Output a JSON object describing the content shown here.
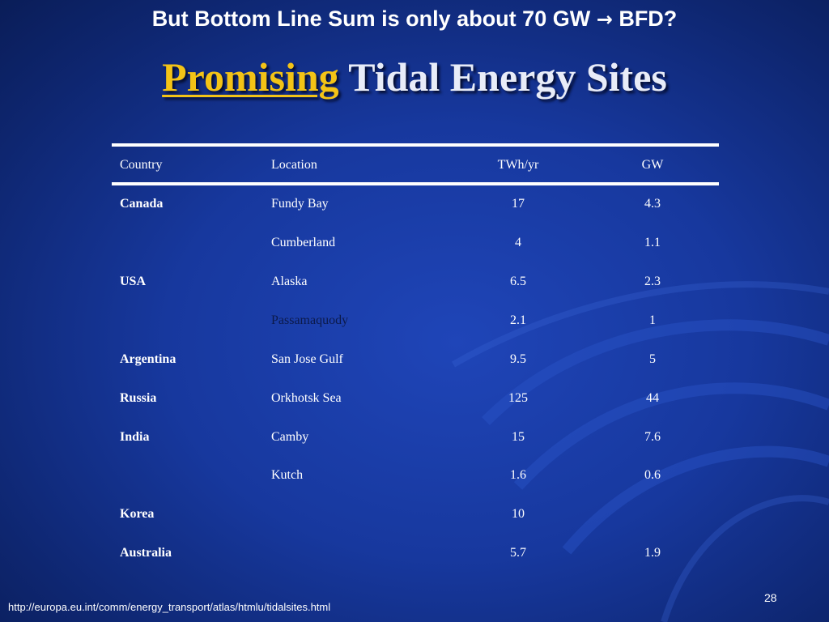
{
  "slide": {
    "top_note_pre": "But Bottom Line Sum is only  about 70 GW ",
    "top_note_arrow": "→",
    "top_note_post": " BFD?",
    "title_highlight": "Promising",
    "title_rest": " Tidal Energy Sites",
    "footer_url": "http://europa.eu.int/comm/energy_transport/atlas/htmlu/tidalsites.html",
    "page_number": "28"
  },
  "table": {
    "headers": {
      "country": "Country",
      "location": "Location",
      "twh": "TWh/yr",
      "gw": "GW"
    },
    "rows": [
      {
        "country": "Canada",
        "location": "Fundy Bay",
        "twh": "17",
        "gw": "4.3"
      },
      {
        "country": "",
        "location": "Cumberland",
        "twh": "4",
        "gw": "1.1"
      },
      {
        "country": "USA",
        "location": "Alaska",
        "twh": "6.5",
        "gw": "2.3"
      },
      {
        "country": "",
        "location": "Passamaquody",
        "twh": "2.1",
        "gw": "1"
      },
      {
        "country": "Argentina",
        "location": "San Jose Gulf",
        "twh": "9.5",
        "gw": "5"
      },
      {
        "country": "Russia",
        "location": "Orkhotsk Sea",
        "twh": "125",
        "gw": "44"
      },
      {
        "country": "India",
        "location": "Camby",
        "twh": "15",
        "gw": "7.6"
      },
      {
        "country": "",
        "location": "Kutch",
        "twh": "1.6",
        "gw": "0.6"
      },
      {
        "country": "Korea",
        "location": "",
        "twh": "10",
        "gw": ""
      },
      {
        "country": "Australia",
        "location": "",
        "twh": "5.7",
        "gw": "1.9"
      }
    ]
  },
  "colors": {
    "background": "#17389e",
    "title_highlight": "#f3c316",
    "text": "#ffffff"
  }
}
